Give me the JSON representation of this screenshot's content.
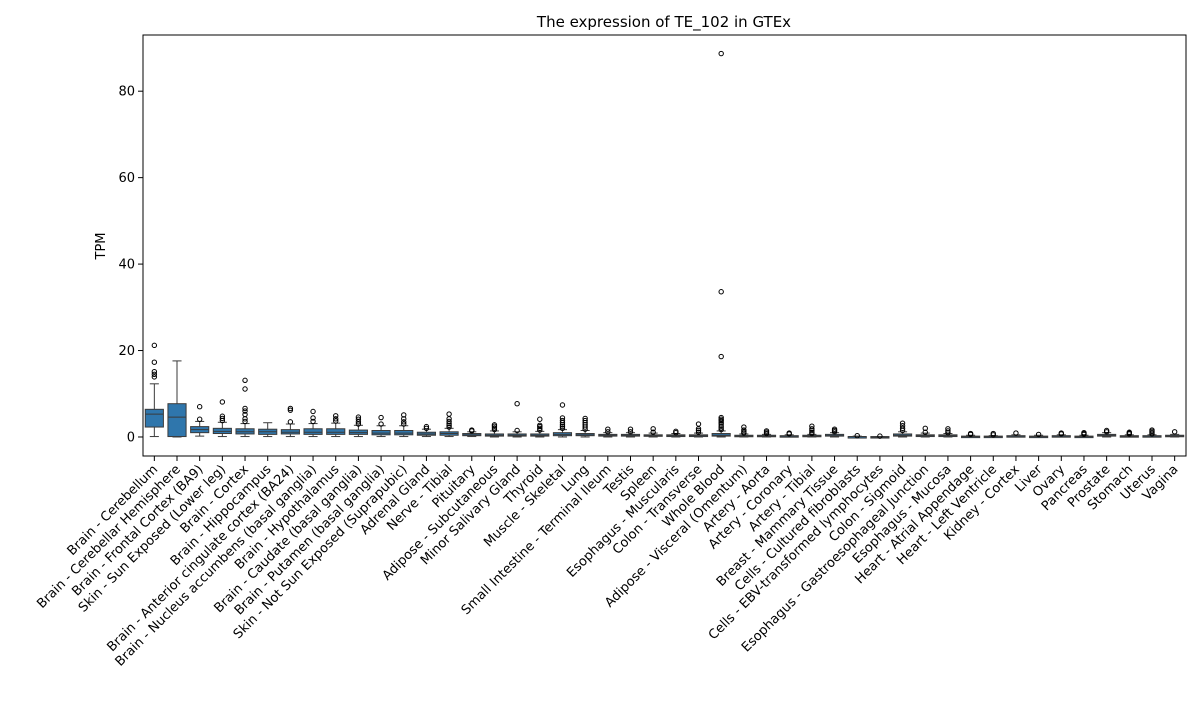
{
  "chart_data": {
    "type": "box",
    "title": "The expression of TE_102 in GTEx",
    "xlabel": "",
    "ylabel": "TPM",
    "ylim": [
      -4.4,
      93
    ],
    "y_ticks": [
      0,
      20,
      40,
      60,
      80
    ],
    "grid": false,
    "legend": "none",
    "box_color": "#2f76ac",
    "edge_color": "#3a3a3a",
    "categories": [
      {
        "name": "Brain - Cerebellum",
        "q1": 2.3,
        "median": 5.3,
        "q3": 6.4,
        "whislo": 0.1,
        "whishi": 12.3,
        "fliers": [
          13.9,
          14.5,
          15.1,
          17.3,
          21.2
        ]
      },
      {
        "name": "Brain - Cerebellar Hemisphere",
        "q1": 0.1,
        "median": 4.6,
        "q3": 7.7,
        "whislo": 0.0,
        "whishi": 17.6,
        "fliers": []
      },
      {
        "name": "Brain - Frontal Cortex (BA9)",
        "q1": 1.0,
        "median": 1.7,
        "q3": 2.4,
        "whislo": 0.2,
        "whishi": 3.6,
        "fliers": [
          4.1,
          7.0
        ]
      },
      {
        "name": "Skin - Sun Exposed (Lower leg)",
        "q1": 0.8,
        "median": 1.3,
        "q3": 2.0,
        "whislo": 0.1,
        "whishi": 3.4,
        "fliers": [
          3.8,
          4.3,
          4.8,
          8.1
        ]
      },
      {
        "name": "Brain - Cortex",
        "q1": 0.7,
        "median": 1.2,
        "q3": 1.9,
        "whislo": 0.1,
        "whishi": 3.1,
        "fliers": [
          3.6,
          4.2,
          5.2,
          6.0,
          6.6,
          11.1,
          13.1
        ]
      },
      {
        "name": "Brain - Hippocampus",
        "q1": 0.6,
        "median": 1.2,
        "q3": 1.8,
        "whislo": 0.1,
        "whishi": 3.3,
        "fliers": []
      },
      {
        "name": "Brain - Anterior cingulate cortex (BA24)",
        "q1": 0.7,
        "median": 1.1,
        "q3": 1.7,
        "whislo": 0.1,
        "whishi": 3.0,
        "fliers": [
          3.5,
          6.2,
          6.6
        ]
      },
      {
        "name": "Brain - Nucleus accumbens (basal ganglia)",
        "q1": 0.6,
        "median": 1.1,
        "q3": 1.9,
        "whislo": 0.1,
        "whishi": 3.1,
        "fliers": [
          3.6,
          4.4,
          5.9
        ]
      },
      {
        "name": "Brain - Hypothalamus",
        "q1": 0.6,
        "median": 1.1,
        "q3": 1.9,
        "whislo": 0.1,
        "whishi": 3.2,
        "fliers": [
          3.7,
          4.2,
          4.9
        ]
      },
      {
        "name": "Brain - Caudate (basal ganglia)",
        "q1": 0.6,
        "median": 1.0,
        "q3": 1.6,
        "whislo": 0.1,
        "whishi": 2.7,
        "fliers": [
          3.0,
          3.5,
          4.1,
          4.6
        ]
      },
      {
        "name": "Brain - Putamen (basal ganglia)",
        "q1": 0.5,
        "median": 0.9,
        "q3": 1.5,
        "whislo": 0.1,
        "whishi": 2.6,
        "fliers": [
          3.0,
          4.5
        ]
      },
      {
        "name": "Skin - Not Sun Exposed (Suprapubic)",
        "q1": 0.5,
        "median": 0.9,
        "q3": 1.5,
        "whislo": 0.1,
        "whishi": 2.6,
        "fliers": [
          3.0,
          3.5,
          4.2,
          5.1
        ]
      },
      {
        "name": "Adrenal Gland",
        "q1": 0.4,
        "median": 0.7,
        "q3": 1.1,
        "whislo": 0.1,
        "whishi": 1.8,
        "fliers": [
          2.0,
          2.4
        ]
      },
      {
        "name": "Nerve - Tibial",
        "q1": 0.4,
        "median": 0.8,
        "q3": 1.2,
        "whislo": 0.1,
        "whishi": 2.0,
        "fliers": [
          2.3,
          2.7,
          3.1,
          3.6,
          4.2,
          5.3
        ]
      },
      {
        "name": "Pituitary",
        "q1": 0.3,
        "median": 0.5,
        "q3": 0.8,
        "whislo": 0.1,
        "whishi": 1.2,
        "fliers": [
          1.4,
          1.6
        ]
      },
      {
        "name": "Adipose - Subcutaneous",
        "q1": 0.2,
        "median": 0.4,
        "q3": 0.7,
        "whislo": 0.0,
        "whishi": 1.4,
        "fliers": [
          1.7,
          2.1,
          2.5,
          2.8
        ]
      },
      {
        "name": "Minor Salivary Gland",
        "q1": 0.2,
        "median": 0.4,
        "q3": 0.7,
        "whislo": 0.0,
        "whishi": 1.2,
        "fliers": [
          1.5,
          7.7
        ]
      },
      {
        "name": "Thyroid",
        "q1": 0.2,
        "median": 0.4,
        "q3": 0.7,
        "whislo": 0.0,
        "whishi": 1.3,
        "fliers": [
          1.6,
          2.0,
          2.4,
          2.7,
          4.1
        ]
      },
      {
        "name": "Muscle - Skeletal",
        "q1": 0.3,
        "median": 0.6,
        "q3": 1.0,
        "whislo": 0.0,
        "whishi": 1.7,
        "fliers": [
          2.0,
          2.4,
          2.8,
          3.3,
          3.8,
          4.4,
          7.4
        ]
      },
      {
        "name": "Lung",
        "q1": 0.3,
        "median": 0.5,
        "q3": 0.8,
        "whislo": 0.0,
        "whishi": 1.5,
        "fliers": [
          1.8,
          2.3,
          2.8,
          3.3,
          3.8,
          4.3
        ]
      },
      {
        "name": "Small Intestine - Terminal Ileum",
        "q1": 0.2,
        "median": 0.4,
        "q3": 0.6,
        "whislo": 0.0,
        "whishi": 1.0,
        "fliers": [
          1.2,
          1.8
        ]
      },
      {
        "name": "Testis",
        "q1": 0.2,
        "median": 0.4,
        "q3": 0.6,
        "whislo": 0.0,
        "whishi": 1.0,
        "fliers": [
          1.2,
          1.8
        ]
      },
      {
        "name": "Spleen",
        "q1": 0.2,
        "median": 0.3,
        "q3": 0.5,
        "whislo": 0.0,
        "whishi": 0.9,
        "fliers": [
          1.1,
          1.9
        ]
      },
      {
        "name": "Esophagus - Muscularis",
        "q1": 0.1,
        "median": 0.3,
        "q3": 0.5,
        "whislo": 0.0,
        "whishi": 0.8,
        "fliers": [
          1.0,
          1.3
        ]
      },
      {
        "name": "Colon - Transverse",
        "q1": 0.1,
        "median": 0.3,
        "q3": 0.5,
        "whislo": 0.0,
        "whishi": 0.9,
        "fliers": [
          1.1,
          1.5,
          1.9,
          3.0
        ]
      },
      {
        "name": "Whole Blood",
        "q1": 0.2,
        "median": 0.4,
        "q3": 0.8,
        "whislo": 0.0,
        "whishi": 1.4,
        "fliers": [
          1.7,
          2.1,
          2.5,
          3.0,
          3.4,
          3.8,
          4.1,
          4.5,
          18.6,
          33.6,
          88.7
        ]
      },
      {
        "name": "Adipose - Visceral (Omentum)",
        "q1": 0.1,
        "median": 0.2,
        "q3": 0.4,
        "whislo": 0.0,
        "whishi": 0.7,
        "fliers": [
          0.9,
          1.2,
          1.6,
          2.3
        ]
      },
      {
        "name": "Artery - Aorta",
        "q1": 0.1,
        "median": 0.2,
        "q3": 0.4,
        "whislo": 0.0,
        "whishi": 0.6,
        "fliers": [
          0.8,
          1.1,
          1.4
        ]
      },
      {
        "name": "Artery - Coronary",
        "q1": 0.1,
        "median": 0.2,
        "q3": 0.3,
        "whislo": 0.0,
        "whishi": 0.5,
        "fliers": [
          0.7,
          0.9
        ]
      },
      {
        "name": "Artery - Tibial",
        "q1": 0.1,
        "median": 0.2,
        "q3": 0.4,
        "whislo": 0.0,
        "whishi": 0.6,
        "fliers": [
          0.8,
          1.1,
          1.5,
          1.9,
          2.5
        ]
      },
      {
        "name": "Breast - Mammary Tissue",
        "q1": 0.2,
        "median": 0.3,
        "q3": 0.6,
        "whislo": 0.0,
        "whishi": 1.0,
        "fliers": [
          1.2,
          1.5,
          1.8
        ]
      },
      {
        "name": "Cells - Cultured fibroblasts",
        "q1": 0.0,
        "median": 0.1,
        "q3": 0.1,
        "whislo": 0.0,
        "whishi": 0.2,
        "fliers": [
          0.3
        ]
      },
      {
        "name": "Cells - EBV-transformed lymphocytes",
        "q1": 0.0,
        "median": 0.0,
        "q3": 0.1,
        "whislo": 0.0,
        "whishi": 0.1,
        "fliers": [
          0.2
        ]
      },
      {
        "name": "Colon - Sigmoid",
        "q1": 0.2,
        "median": 0.4,
        "q3": 0.7,
        "whislo": 0.0,
        "whishi": 1.2,
        "fliers": [
          1.5,
          2.0,
          2.6,
          3.2
        ]
      },
      {
        "name": "Esophagus - Gastroesophageal Junction",
        "q1": 0.1,
        "median": 0.3,
        "q3": 0.5,
        "whislo": 0.0,
        "whishi": 0.9,
        "fliers": [
          1.1,
          2.0
        ]
      },
      {
        "name": "Esophagus - Mucosa",
        "q1": 0.1,
        "median": 0.3,
        "q3": 0.5,
        "whislo": 0.0,
        "whishi": 0.8,
        "fliers": [
          1.0,
          1.4,
          1.9
        ]
      },
      {
        "name": "Heart - Atrial Appendage",
        "q1": 0.1,
        "median": 0.1,
        "q3": 0.2,
        "whislo": 0.0,
        "whishi": 0.4,
        "fliers": [
          0.6,
          0.8
        ]
      },
      {
        "name": "Heart - Left Ventricle",
        "q1": 0.0,
        "median": 0.1,
        "q3": 0.2,
        "whislo": 0.0,
        "whishi": 0.3,
        "fliers": [
          0.5,
          0.8
        ]
      },
      {
        "name": "Kidney - Cortex",
        "q1": 0.1,
        "median": 0.2,
        "q3": 0.3,
        "whislo": 0.0,
        "whishi": 0.5,
        "fliers": [
          0.9
        ]
      },
      {
        "name": "Liver",
        "q1": 0.1,
        "median": 0.1,
        "q3": 0.2,
        "whislo": 0.0,
        "whishi": 0.4,
        "fliers": [
          0.6
        ]
      },
      {
        "name": "Ovary",
        "q1": 0.1,
        "median": 0.2,
        "q3": 0.3,
        "whislo": 0.0,
        "whishi": 0.5,
        "fliers": [
          0.7,
          0.9
        ]
      },
      {
        "name": "Pancreas",
        "q1": 0.0,
        "median": 0.1,
        "q3": 0.2,
        "whislo": 0.0,
        "whishi": 0.4,
        "fliers": [
          0.6,
          0.8,
          1.0
        ]
      },
      {
        "name": "Prostate",
        "q1": 0.2,
        "median": 0.4,
        "q3": 0.6,
        "whislo": 0.0,
        "whishi": 1.0,
        "fliers": [
          1.2,
          1.5
        ]
      },
      {
        "name": "Stomach",
        "q1": 0.1,
        "median": 0.1,
        "q3": 0.3,
        "whislo": 0.0,
        "whishi": 0.5,
        "fliers": [
          0.7,
          0.9,
          1.1
        ]
      },
      {
        "name": "Uterus",
        "q1": 0.1,
        "median": 0.2,
        "q3": 0.3,
        "whislo": 0.0,
        "whishi": 0.5,
        "fliers": [
          0.7,
          1.0,
          1.3,
          1.6
        ]
      },
      {
        "name": "Vagina",
        "q1": 0.1,
        "median": 0.2,
        "q3": 0.4,
        "whislo": 0.0,
        "whishi": 0.6,
        "fliers": [
          1.2
        ]
      }
    ]
  }
}
